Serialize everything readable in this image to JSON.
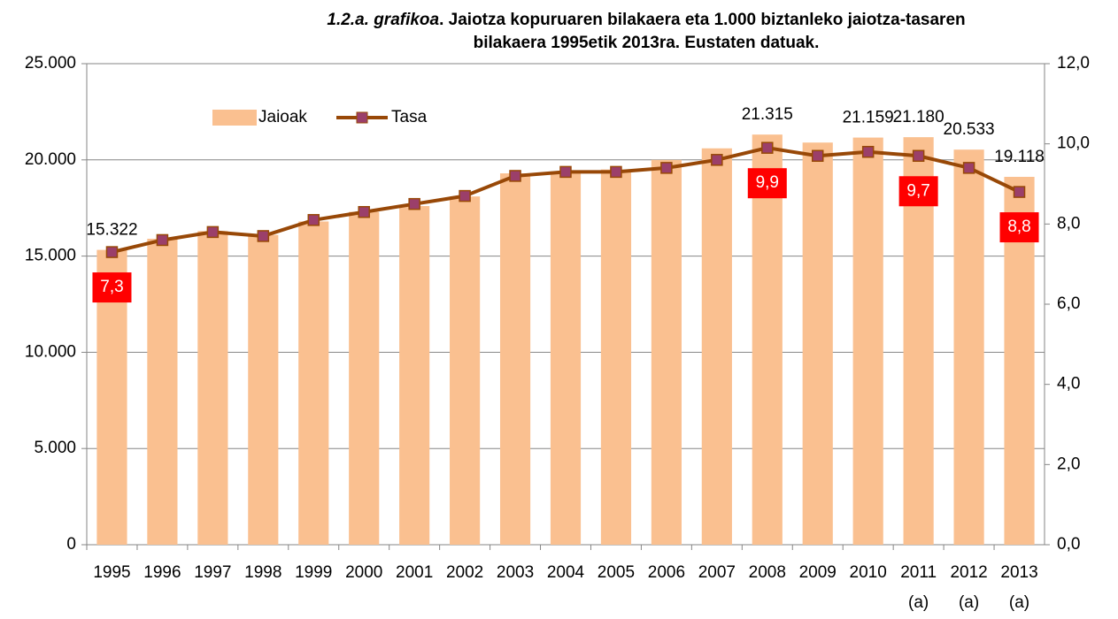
{
  "chart_data": {
    "type": "bar-line",
    "title_italic": "1.2.a. grafikoa",
    "title": ". Jaiotza kopuruaren bilakaera eta 1.000 biztanleko jaiotza-tasaren bilakaera 1995etik 2013ra. Eustaten datuak.",
    "categories": [
      "1995",
      "1996",
      "1997",
      "1998",
      "1999",
      "2000",
      "2001",
      "2002",
      "2003",
      "2004",
      "2005",
      "2006",
      "2007",
      "2008",
      "2009",
      "2010",
      "2011 (a)",
      "2012 (a)",
      "2013 (a)"
    ],
    "series": [
      {
        "name": "Jaioak",
        "type": "bar",
        "color": "#fac090",
        "values": [
          15322,
          15900,
          16300,
          16100,
          16800,
          17300,
          17600,
          18100,
          19300,
          19400,
          19500,
          20000,
          20600,
          21315,
          20900,
          21159,
          21180,
          20533,
          19118
        ],
        "value_labels": [
          "15.322",
          null,
          null,
          null,
          null,
          null,
          null,
          null,
          null,
          null,
          null,
          null,
          null,
          "21.315",
          null,
          "21.159",
          "21.180",
          "20.533",
          "19.118"
        ]
      },
      {
        "name": "Tasa",
        "type": "line",
        "axis": "y2",
        "color": "#984807",
        "marker_color": "#9b3f6a",
        "values": [
          7.3,
          7.6,
          7.8,
          7.7,
          8.1,
          8.3,
          8.5,
          8.7,
          9.2,
          9.3,
          9.3,
          9.4,
          9.6,
          9.9,
          9.7,
          9.8,
          9.7,
          9.4,
          8.8
        ],
        "value_labels": [
          "7,3",
          null,
          null,
          null,
          null,
          null,
          null,
          null,
          null,
          null,
          null,
          null,
          null,
          "9,9",
          null,
          null,
          "9,7",
          null,
          "8,8"
        ]
      }
    ],
    "ylim": [
      0,
      25000
    ],
    "yticks": [
      0,
      {
        "value": 5000,
        "label": "5.000"
      },
      {
        "value": 10000,
        "label": "10.000"
      },
      {
        "value": 15000,
        "label": "15.000"
      },
      {
        "value": 20000,
        "label": "20.000"
      },
      {
        "value": 25000,
        "label": "25.000"
      }
    ],
    "y2lim": [
      0,
      12
    ],
    "y2ticks": [
      {
        "value": 0,
        "label": "0,0"
      },
      {
        "value": 2,
        "label": "2,0"
      },
      {
        "value": 4,
        "label": "4,0"
      },
      {
        "value": 6,
        "label": "6,0"
      },
      {
        "value": 8,
        "label": "8,0"
      },
      {
        "value": 10,
        "label": "10,0"
      },
      {
        "value": 12,
        "label": "12,0"
      }
    ],
    "grid": true,
    "legend": "top-left"
  }
}
